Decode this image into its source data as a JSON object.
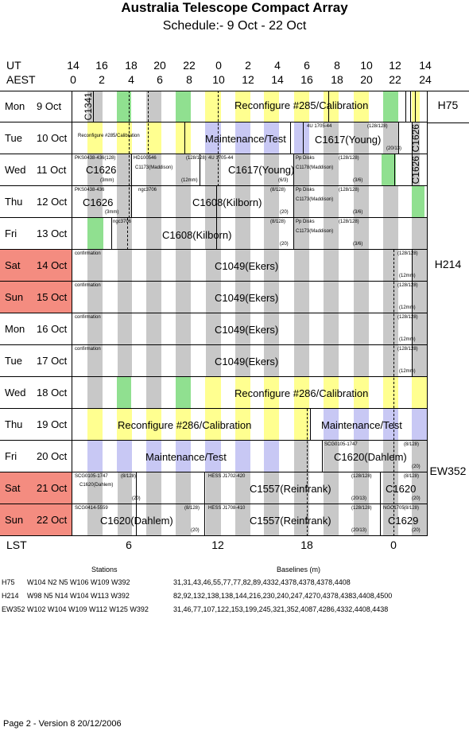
{
  "title": "Australia Telescope Compact Array",
  "subtitle": "Schedule:- 9  Oct - 22 Oct",
  "axis": {
    "ut_label": "UT",
    "aest_label": "AEST",
    "lst_label": "LST",
    "ut_ticks": [
      "14",
      "16",
      "18",
      "20",
      "22",
      "0",
      "2",
      "4",
      "6",
      "8",
      "10",
      "12",
      "14"
    ],
    "aest_ticks": [
      "0",
      "2",
      "4",
      "6",
      "8",
      "10",
      "12",
      "14",
      "16",
      "18",
      "20",
      "22",
      "24"
    ],
    "lst_ticks": [
      "6",
      "12",
      "18",
      "0"
    ]
  },
  "days": [
    {
      "dow": "Mon",
      "date": "9  Oct",
      "weekend": false
    },
    {
      "dow": "Tue",
      "date": "10 Oct",
      "weekend": false
    },
    {
      "dow": "Wed",
      "date": "11 Oct",
      "weekend": false
    },
    {
      "dow": "Thu",
      "date": "12 Oct",
      "weekend": false
    },
    {
      "dow": "Fri",
      "date": "13 Oct",
      "weekend": false
    },
    {
      "dow": "Sat",
      "date": "14 Oct",
      "weekend": true
    },
    {
      "dow": "Sun",
      "date": "15 Oct",
      "weekend": true
    },
    {
      "dow": "Mon",
      "date": "16 Oct",
      "weekend": false
    },
    {
      "dow": "Tue",
      "date": "17 Oct",
      "weekend": false
    },
    {
      "dow": "Wed",
      "date": "18 Oct",
      "weekend": false
    },
    {
      "dow": "Thu",
      "date": "19 Oct",
      "weekend": false
    },
    {
      "dow": "Fri",
      "date": "20 Oct",
      "weekend": false
    },
    {
      "dow": "Sat",
      "date": "21 Oct",
      "weekend": true
    },
    {
      "dow": "Sun",
      "date": "22 Oct",
      "weekend": true
    }
  ],
  "configs": [
    "H75",
    "H214",
    "EW352"
  ],
  "entries": {
    "r0_c1341": "C1341",
    "r0_reconf": "Reconfigure #285/Calibration",
    "r1_reconf": "Reconfigure #285/Calibration",
    "r1_maint": "Maintenance/Test",
    "r1_c1617": "C1617(Young)",
    "r1_c1626v": "C1626",
    "r1_s1": "4U 1705-44",
    "r1_s2": "(128/128)",
    "r1_s3": "(20/13)",
    "r2_c1626": "C1626",
    "r2_c1173": "C1173(Maddison)",
    "r2_c1617": "C1617(Young)",
    "r2_c1178": "C1178(Maddison)",
    "r2_c1626v": "C1626",
    "r2_s1": "PKS0438-436(128)",
    "r2_s2": "HD100546",
    "r2_s3": "(128/128)",
    "r2_s4": "4U 1705-44",
    "r2_s5": "Pp Disks",
    "r2_s6": "(128/128)",
    "r2_s7": "(3mm)",
    "r2_s8": "(12mm)",
    "r2_s9": "(6/3)",
    "r2_s10": "(3/6)",
    "r3_c1626": "C1626",
    "r3_c1608": "C1608(Kilborn)",
    "r3_c1173": "C1173(Maddison)",
    "r3_s1": "PKS0438-436",
    "r3_s2": "ngc3706",
    "r3_s3": "(8/128)",
    "r3_s4": "Pp Disks",
    "r3_s5": "(128/128)",
    "r3_s6": "(3mm)",
    "r3_s7": "(20)",
    "r3_s8": "(3/6)",
    "r4_c1608": "C1608(Kilborn)",
    "r4_c1173": "C1173(Maddison)",
    "r4_s1": "ngc3706",
    "r4_s2": "(8/128)",
    "r4_s3": "Pp Disks",
    "r4_s4": "(128/128)",
    "r4_s5": "(20)",
    "r4_s6": "(3/6)",
    "c1049": "C1049(Ekers)",
    "confirmation": "confirmation",
    "c1049_s1": "(128/128)",
    "c1049_s2": "(12mm)",
    "r9_reconf": "Reconfigure #286/Calibration",
    "r10_reconf": "Reconfigure #286/Calibration",
    "r10_maint": "Maintenance/Test",
    "r11_maint": "Maintenance/Test",
    "r11_c1620": "C1620(Dahlem)",
    "r11_s1": "SCG0105-1747",
    "r11_s2": "(8/128)",
    "r11_s3": "(20)",
    "r12_c1620": "C1620(Dahlem)",
    "r12_c1557": "C1557(Reinfrank)",
    "r12_c1620b": "C1620",
    "r12_s1": "SCG0105-1747",
    "r12_s2": "(8/128)",
    "r12_s3": "(20)",
    "r12_s4": "HESS J1702-420",
    "r12_s5": "(128/128)",
    "r12_s6": "(20/13)",
    "r12_s7": "(8/128)",
    "r12_s8": "(20)",
    "r13_c1620": "C1620(Dahlem)",
    "r13_c1557": "C1557(Reinfrank)",
    "r13_c1629": "C1629",
    "r13_s1": "SCG0414-5559",
    "r13_s2": "(8/128)",
    "r13_s3": "(20)",
    "r13_s4": "HESS J1708-410",
    "r13_s5": "(128/128)",
    "r13_s6": "(20/13)",
    "r13_s7": "NGC1705",
    "r13_s8": "(8/128)",
    "r13_s9": "(20)"
  },
  "legend": {
    "stations_header": "Stations",
    "baselines_header": "Baselines (m)",
    "rows": [
      {
        "config": "H75",
        "stations": "W104  N2  N5  W106  W109  W392",
        "baselines": "31,31,43,46,55,77,77,82,89,4332,4378,4378,4378,4408"
      },
      {
        "config": "H214",
        "stations": "W98  N5  N14  W104  W113  W392",
        "baselines": "82,92,132,138,138,144,216,230,240,247,4270,4378,4383,4408,4500"
      },
      {
        "config": "EW352",
        "stations": "W102  W104  W109  W112  W125  W392",
        "baselines": "31,46,77,107,122,153,199,245,321,352,4087,4286,4332,4408,4438"
      }
    ]
  },
  "footer": "Page 2 - Version 8  20/12/2006"
}
